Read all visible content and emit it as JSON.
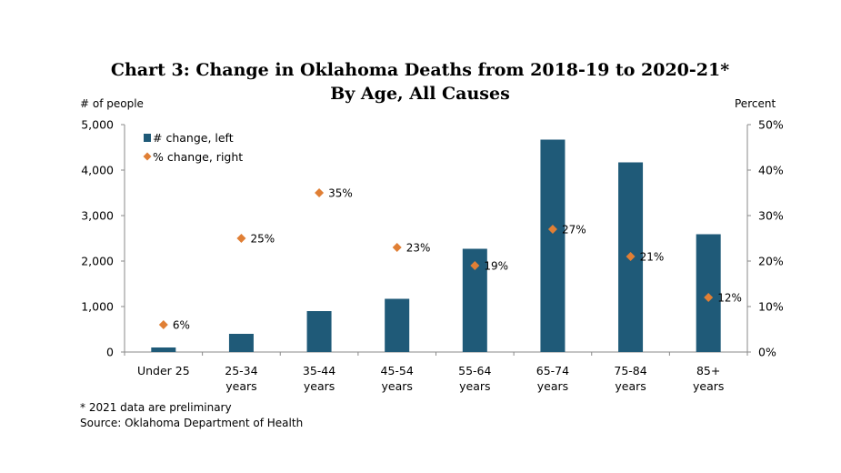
{
  "chart_data": {
    "type": "bar",
    "title": "Chart 3: Change in Oklahoma Deaths from 2018-19 to 2020-21*",
    "subtitle": "By Age, All Causes",
    "ylabel_left": "# of people",
    "ylabel_right": "Percent",
    "categories": [
      [
        "Under 25"
      ],
      [
        "25-34",
        "years"
      ],
      [
        "35-44",
        "years"
      ],
      [
        "45-54",
        "years"
      ],
      [
        "55-64",
        "years"
      ],
      [
        "65-74",
        "years"
      ],
      [
        "75-84",
        "years"
      ],
      [
        "85+",
        "years"
      ]
    ],
    "series": [
      {
        "name": "# change, left",
        "type": "bar",
        "axis": "left",
        "color": "#1f5a78",
        "values": [
          100,
          400,
          900,
          1170,
          2270,
          4670,
          4170,
          2590
        ]
      },
      {
        "name": "% change, right",
        "type": "scatter",
        "axis": "right",
        "color": "#e07f35",
        "values": [
          6,
          25,
          35,
          23,
          19,
          27,
          21,
          12
        ],
        "data_labels": [
          "6%",
          "25%",
          "35%",
          "23%",
          "19%",
          "27%",
          "21%",
          "12%"
        ]
      }
    ],
    "ylim_left": [
      0,
      5000
    ],
    "ylim_right": [
      0,
      50
    ],
    "left_ticks": [
      "0",
      "1,000",
      "2,000",
      "3,000",
      "4,000",
      "5,000"
    ],
    "right_ticks": [
      "0%",
      "10%",
      "20%",
      "30%",
      "40%",
      "50%"
    ],
    "legend_position": "top-left",
    "grid": false
  },
  "footnotes": {
    "note": "* 2021 data are preliminary",
    "source": "Source: Oklahoma Department of Health"
  }
}
